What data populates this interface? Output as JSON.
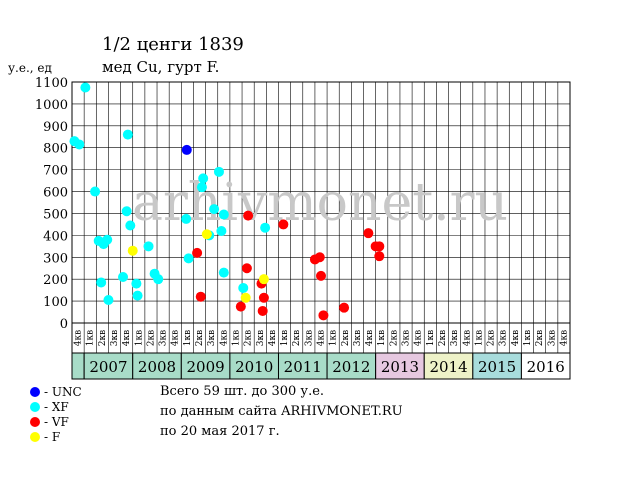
{
  "chart_data": {
    "type": "scatter",
    "title": "1/2 ценги 1839",
    "subtitle": "мед Cu, гурт F.",
    "ylabel": "у.е., ед",
    "ylim": [
      0,
      1100
    ],
    "yticks": [
      0,
      100,
      200,
      300,
      400,
      500,
      600,
      700,
      800,
      900,
      1000,
      1100
    ],
    "quarter_labels": [
      "4кв",
      "1кв",
      "2кв",
      "3кв"
    ],
    "years": [
      "2007",
      "2008",
      "2009",
      "2010",
      "2011",
      "2012",
      "2013",
      "2014",
      "2015",
      "2016"
    ],
    "year_colors": [
      "#a8dcc8",
      "#a8dcc8",
      "#a8dcc8",
      "#a8dcc8",
      "#a8dcc8",
      "#a8dcc8",
      "#e6c8e0",
      "#eef2c8",
      "#a8dcdc",
      "#ffffff"
    ],
    "watermark": "arhivmonet.ru",
    "grid": true,
    "series": [
      {
        "name": "UNC",
        "color": "#0000ff",
        "points": [
          [
            9.45,
            790
          ]
        ]
      },
      {
        "name": "XF",
        "color": "#00ffff",
        "points": [
          [
            0.2,
            830
          ],
          [
            0.6,
            815
          ],
          [
            1.1,
            1075
          ],
          [
            1.9,
            600
          ],
          [
            2.2,
            375
          ],
          [
            2.4,
            185
          ],
          [
            2.6,
            360
          ],
          [
            2.9,
            380
          ],
          [
            3.0,
            105
          ],
          [
            4.2,
            210
          ],
          [
            4.5,
            510
          ],
          [
            4.6,
            860
          ],
          [
            4.8,
            445
          ],
          [
            5.3,
            180
          ],
          [
            5.4,
            125
          ],
          [
            6.3,
            350
          ],
          [
            6.8,
            225
          ],
          [
            7.1,
            200
          ],
          [
            9.4,
            475
          ],
          [
            9.6,
            295
          ],
          [
            10.7,
            620
          ],
          [
            10.8,
            660
          ],
          [
            11.3,
            400
          ],
          [
            11.7,
            520
          ],
          [
            12.1,
            690
          ],
          [
            12.3,
            420
          ],
          [
            12.5,
            495
          ],
          [
            12.5,
            230
          ],
          [
            14.1,
            160
          ],
          [
            15.9,
            435
          ]
        ]
      },
      {
        "name": "VF",
        "color": "#ff0000",
        "points": [
          [
            10.3,
            320
          ],
          [
            10.6,
            120
          ],
          [
            13.9,
            75
          ],
          [
            14.5,
            490
          ],
          [
            14.4,
            250
          ],
          [
            15.6,
            180
          ],
          [
            15.7,
            55
          ],
          [
            15.8,
            115
          ],
          [
            17.4,
            450
          ],
          [
            20.0,
            290
          ],
          [
            20.4,
            300
          ],
          [
            20.5,
            215
          ],
          [
            20.7,
            35
          ],
          [
            22.4,
            70
          ],
          [
            24.4,
            410
          ],
          [
            25.0,
            350
          ],
          [
            25.3,
            350
          ],
          [
            25.3,
            305
          ]
        ]
      },
      {
        "name": "F",
        "color": "#ffff00",
        "points": [
          [
            5.0,
            330
          ],
          [
            11.1,
            405
          ],
          [
            14.3,
            115
          ],
          [
            15.8,
            200
          ]
        ]
      }
    ]
  },
  "legend": [
    {
      "color": "#0000ff",
      "label": "UNC"
    },
    {
      "color": "#00ffff",
      "label": "XF"
    },
    {
      "color": "#ff0000",
      "label": "VF"
    },
    {
      "color": "#ffff00",
      "label": "F"
    }
  ],
  "notes": [
    "Всего 59 шт. до 300 у.е.",
    "по данным сайта ARHIVMONET.RU",
    "по 20 мая 2017 г."
  ]
}
